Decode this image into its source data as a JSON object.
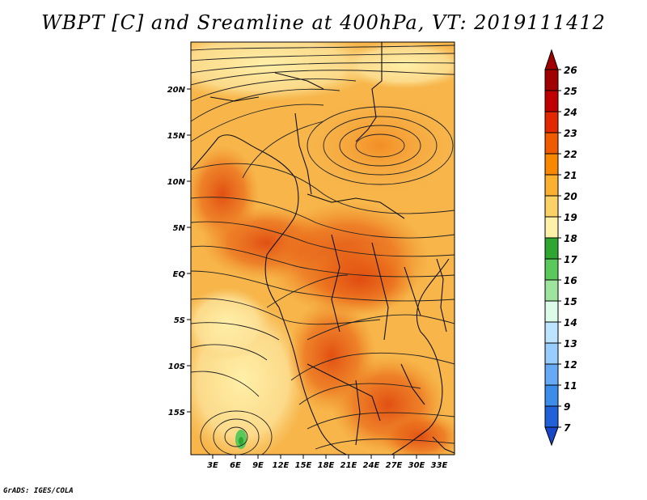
{
  "title": "WBPT [C] and Sreamline at 400hPa, VT: 2019111412",
  "footer": "GrADS: IGES/COLA",
  "map": {
    "lat_ticks": [
      "20N",
      "15N",
      "10N",
      "5N",
      "EQ",
      "5S",
      "10S",
      "15S"
    ],
    "lon_ticks": [
      "3E",
      "6E",
      "9E",
      "12E",
      "15E",
      "18E",
      "21E",
      "24E",
      "27E",
      "30E",
      "33E"
    ]
  },
  "colorbar": {
    "labels": [
      "26",
      "25",
      "24",
      "23",
      "22",
      "21",
      "20",
      "19",
      "18",
      "17",
      "16",
      "15",
      "14",
      "13",
      "12",
      "11",
      "9",
      "7"
    ],
    "colors": [
      "#a00000",
      "#c00000",
      "#e32800",
      "#f05a00",
      "#f88800",
      "#fbb030",
      "#fcd165",
      "#fff2a8",
      "#2fa62f",
      "#5ac85a",
      "#9ee49e",
      "#dcfbe8",
      "#bce3ff",
      "#99ccff",
      "#66aaf5",
      "#3c8cea",
      "#2060d8",
      "#1846c8"
    ]
  }
}
